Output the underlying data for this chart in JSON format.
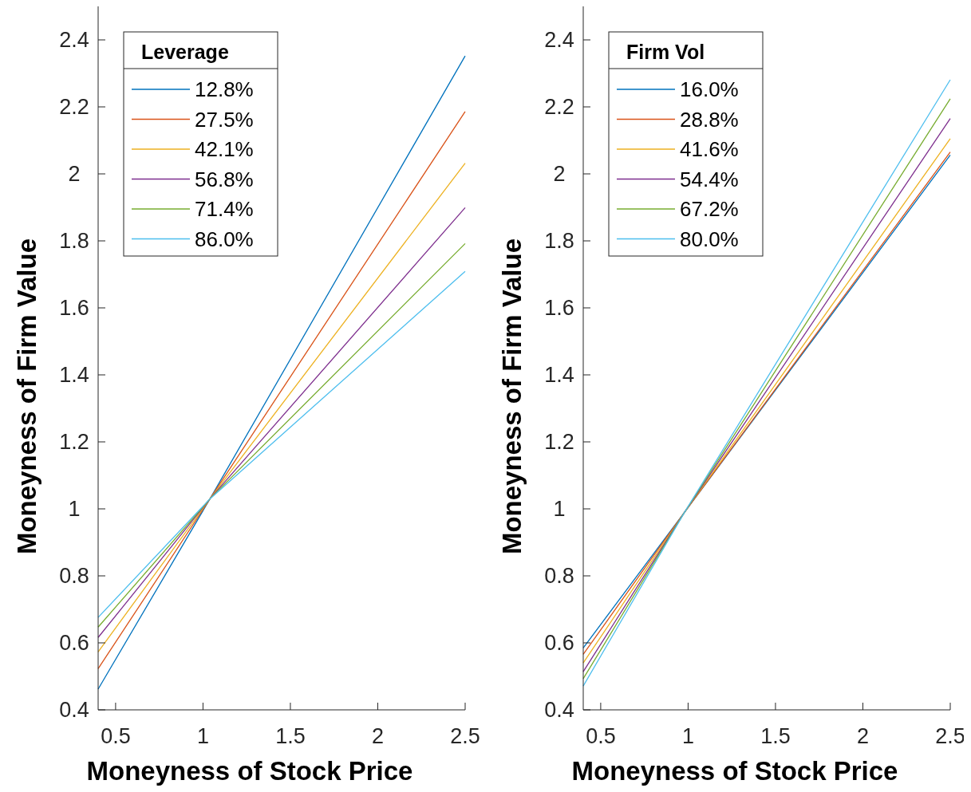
{
  "chart_data": [
    {
      "type": "line",
      "xlabel": "Moneyness of Stock Price",
      "ylabel": "Moneyness of Firm Value",
      "legend_title": "Leverage",
      "legend": "top left",
      "xlim": [
        0.4,
        2.5
      ],
      "ylim": [
        0.4,
        2.5
      ],
      "xticks": [
        0.5,
        1,
        1.5,
        2,
        2.5
      ],
      "yticks": [
        0.4,
        0.6,
        0.8,
        1,
        1.2,
        1.4,
        1.6,
        1.8,
        2,
        2.2,
        2.4
      ],
      "x": [
        0.4,
        1.04,
        2.5
      ],
      "marker": "none",
      "line_style": "solid",
      "series": [
        {
          "name": "12.8%",
          "color": "#0072bd",
          "values": [
            0.462,
            1.03,
            2.352
          ]
        },
        {
          "name": "27.5%",
          "color": "#d95319",
          "values": [
            0.523,
            1.03,
            2.186
          ]
        },
        {
          "name": "42.1%",
          "color": "#edb120",
          "values": [
            0.573,
            1.03,
            2.032
          ]
        },
        {
          "name": "56.8%",
          "color": "#7e2f8e",
          "values": [
            0.616,
            1.03,
            1.899
          ]
        },
        {
          "name": "71.4%",
          "color": "#77ac30",
          "values": [
            0.647,
            1.03,
            1.792
          ]
        },
        {
          "name": "86.0%",
          "color": "#4dbeee",
          "values": [
            0.676,
            1.03,
            1.709
          ]
        }
      ]
    },
    {
      "type": "line",
      "xlabel": "Moneyness of Stock Price",
      "ylabel": "Moneyness of Firm Value",
      "legend_title": "Firm Vol",
      "legend": "top left",
      "xlim": [
        0.4,
        2.5
      ],
      "ylim": [
        0.4,
        2.5
      ],
      "xticks": [
        0.5,
        1,
        1.5,
        2,
        2.5
      ],
      "yticks": [
        0.4,
        0.6,
        0.8,
        1,
        1.2,
        1.4,
        1.6,
        1.8,
        2,
        2.2,
        2.4
      ],
      "x": [
        0.4,
        0.98,
        2.5
      ],
      "marker": "none",
      "line_style": "solid",
      "series": [
        {
          "name": "16.0%",
          "color": "#0072bd",
          "values": [
            0.585,
            0.99,
            2.056
          ]
        },
        {
          "name": "28.8%",
          "color": "#d95319",
          "values": [
            0.566,
            0.99,
            2.065
          ]
        },
        {
          "name": "41.6%",
          "color": "#edb120",
          "values": [
            0.54,
            0.99,
            2.105
          ]
        },
        {
          "name": "54.4%",
          "color": "#7e2f8e",
          "values": [
            0.514,
            0.99,
            2.165
          ]
        },
        {
          "name": "67.2%",
          "color": "#77ac30",
          "values": [
            0.493,
            0.99,
            2.224
          ]
        },
        {
          "name": "80.0%",
          "color": "#4dbeee",
          "values": [
            0.471,
            0.99,
            2.281
          ]
        }
      ]
    }
  ]
}
